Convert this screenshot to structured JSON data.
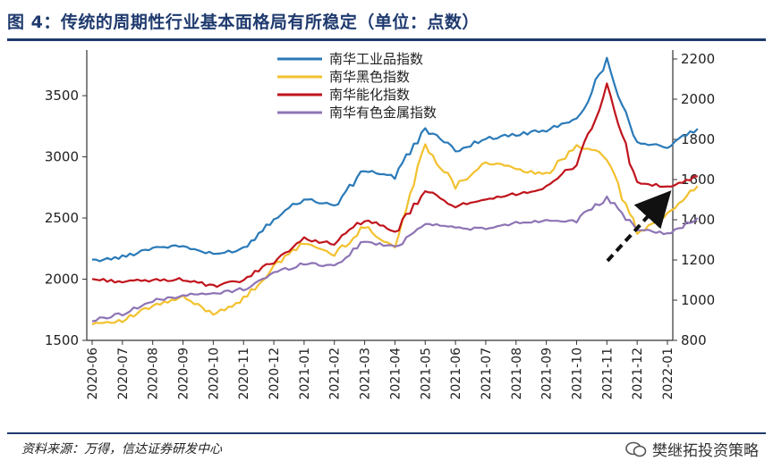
{
  "header": {
    "title": "图 4：传统的周期性行业基本面格局有所稳定（单位：点数）"
  },
  "footer": {
    "source": "资料来源：万得，信达证券研发中心",
    "watermark": "樊继拓投资策略"
  },
  "colors": {
    "industrial": "#2a7ab8",
    "black": "#f2c12e",
    "energy": "#c0141c",
    "nonferrous": "#8d74b5",
    "accent": "#1f3a6e"
  },
  "chart_data": {
    "type": "line",
    "title": "传统的周期性行业基本面格局有所稳定（单位：点数）",
    "y_left": {
      "ticks": [
        "3500",
        "3000",
        "2500",
        "2000",
        "1500"
      ],
      "range": [
        1500,
        3800
      ]
    },
    "y_right": {
      "ticks": [
        "2200",
        "2000",
        "1800",
        "1600",
        "1400",
        "1200",
        "1000",
        "800"
      ],
      "range": [
        800,
        2200
      ]
    },
    "x_ticks": [
      "2020-06",
      "2020-07",
      "2020-08",
      "2020-09",
      "2020-10",
      "2020-11",
      "2020-12",
      "2021-01",
      "2021-02",
      "2021-03",
      "2021-04",
      "2021-05",
      "2021-06",
      "2021-07",
      "2021-08",
      "2021-09",
      "2021-10",
      "2021-11",
      "2021-12",
      "2022-01"
    ],
    "series": [
      {
        "name": "南华工业品指数",
        "axis": "left",
        "color_key": "industrial",
        "values": [
          2150,
          2180,
          2260,
          2270,
          2200,
          2250,
          2500,
          2660,
          2600,
          2890,
          2840,
          3230,
          3050,
          3150,
          3180,
          3220,
          3300,
          3790,
          3120,
          3080,
          3230
        ]
      },
      {
        "name": "南华黑色指数",
        "axis": "left",
        "color_key": "black",
        "values": [
          1640,
          1660,
          1780,
          1850,
          1720,
          1830,
          2100,
          2300,
          2200,
          2430,
          2260,
          3100,
          2760,
          2960,
          2900,
          2850,
          3100,
          3000,
          2370,
          2530,
          2760
        ]
      },
      {
        "name": "南华能化指数",
        "axis": "left",
        "color_key": "energy",
        "values": [
          2000,
          1980,
          1990,
          2000,
          1940,
          1990,
          2150,
          2330,
          2290,
          2490,
          2380,
          2720,
          2600,
          2640,
          2700,
          2740,
          2950,
          3560,
          2790,
          2750,
          2840
        ]
      },
      {
        "name": "南华有色金属指数",
        "axis": "left",
        "color_key": "nonferrous",
        "values": [
          1660,
          1720,
          1820,
          1870,
          1880,
          1920,
          2050,
          2130,
          2110,
          2310,
          2260,
          2460,
          2420,
          2410,
          2460,
          2480,
          2480,
          2660,
          2410,
          2370,
          2500
        ]
      }
    ],
    "legend": [
      "南华工业品指数",
      "南华黑色指数",
      "南华能化指数",
      "南华有色金属指数"
    ],
    "annotation": "dashed arrow pointing upward (recovery)"
  }
}
